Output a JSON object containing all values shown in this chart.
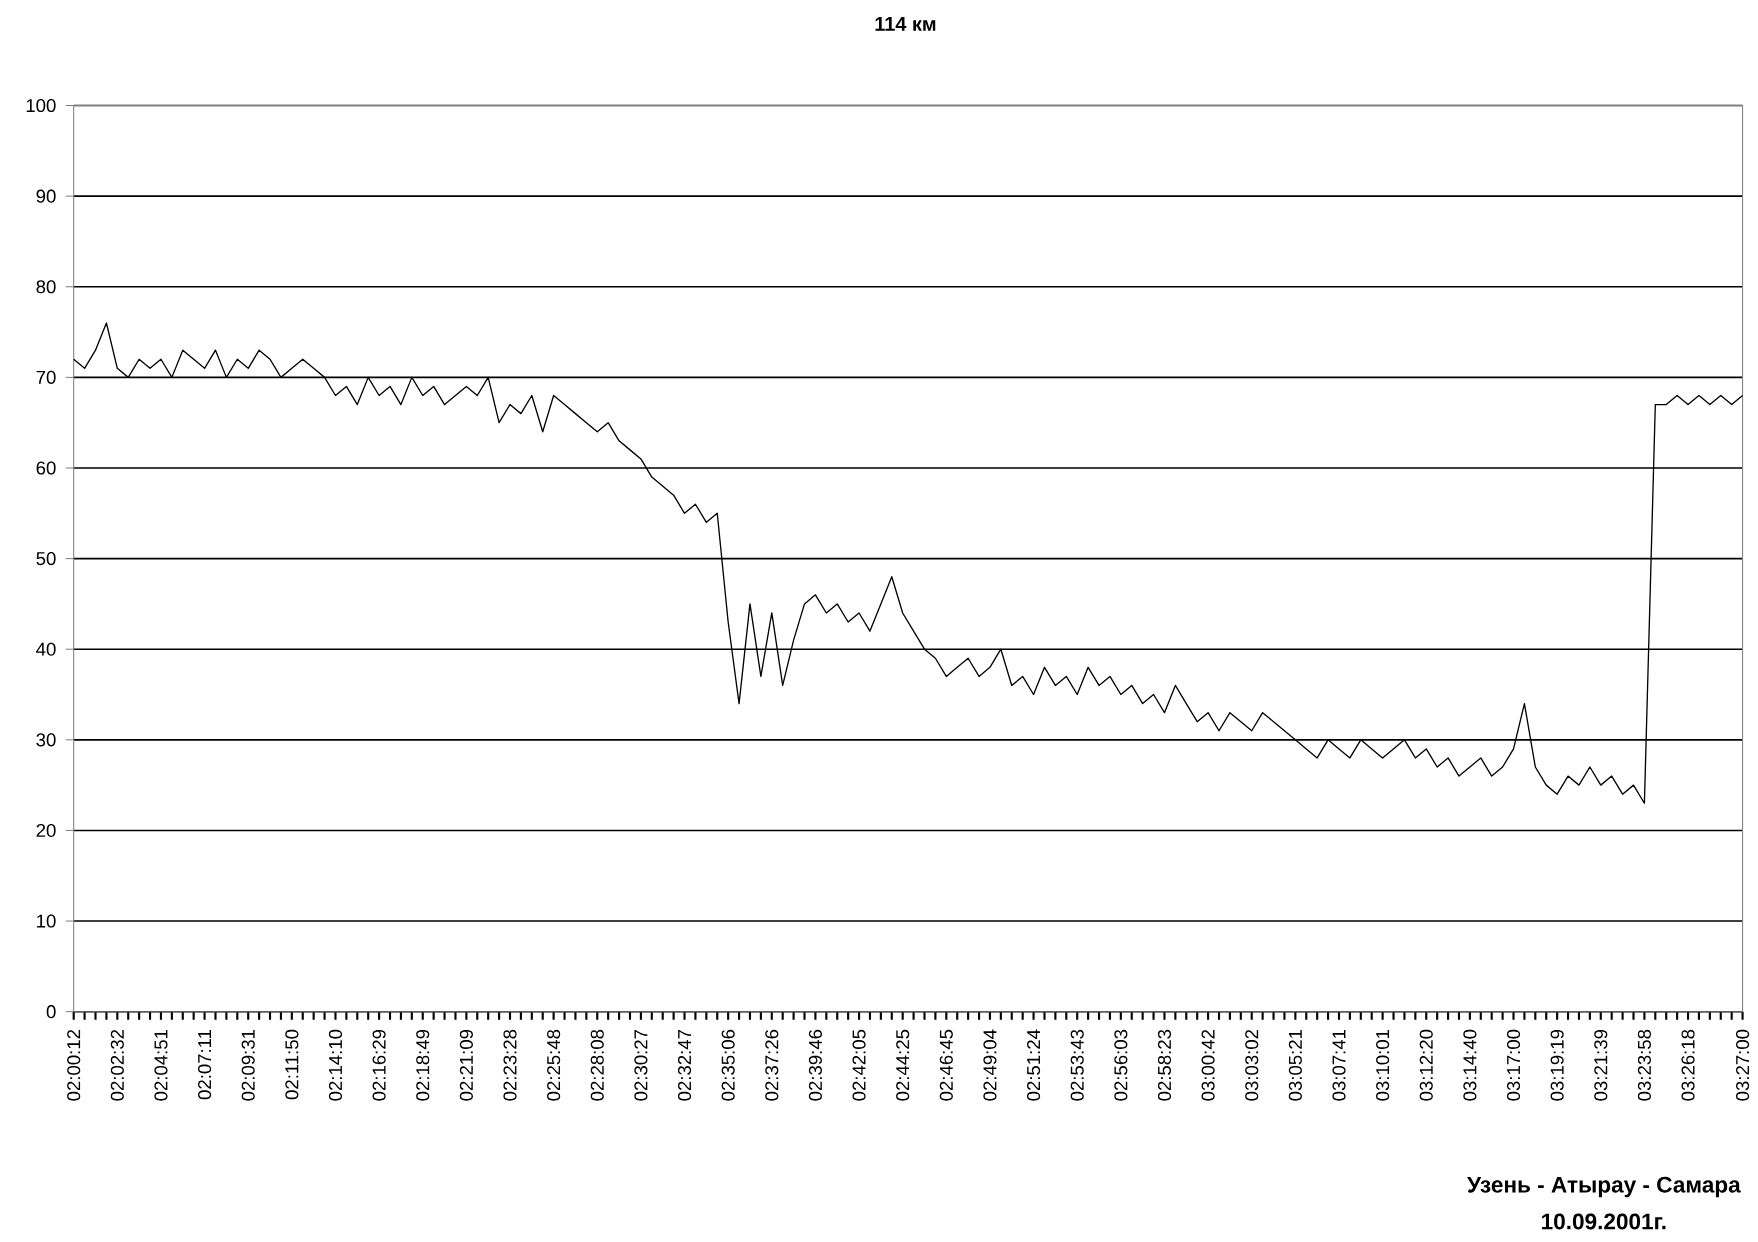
{
  "chart_data": {
    "type": "line",
    "title": "114 км",
    "categories": [
      "02:00:12",
      null,
      null,
      null,
      "02:02:32",
      null,
      null,
      null,
      "02:04:51",
      null,
      null,
      null,
      "02:07:11",
      null,
      null,
      null,
      "02:09:31",
      null,
      null,
      null,
      "02:11:50",
      null,
      null,
      null,
      "02:14:10",
      null,
      null,
      null,
      "02:16:29",
      null,
      null,
      null,
      "02:18:49",
      null,
      null,
      null,
      "02:21:09",
      null,
      null,
      null,
      "02:23:28",
      null,
      null,
      null,
      "02:25:48",
      null,
      null,
      null,
      "02:28:08",
      null,
      null,
      null,
      "02:30:27",
      null,
      null,
      null,
      "02:32:47",
      null,
      null,
      null,
      "02:35:06",
      null,
      null,
      null,
      "02:37:26",
      null,
      null,
      null,
      "02:39:46",
      null,
      null,
      null,
      "02:42:05",
      null,
      null,
      null,
      "02:44:25",
      null,
      null,
      null,
      "02:46:45",
      null,
      null,
      null,
      "02:49:04",
      null,
      null,
      null,
      "02:51:24",
      null,
      null,
      null,
      "02:53:43",
      null,
      null,
      null,
      "02:56:03",
      null,
      null,
      null,
      "02:58:23",
      null,
      null,
      null,
      "03:00:42",
      null,
      null,
      null,
      "03:03:02",
      null,
      null,
      null,
      "03:05:21",
      null,
      null,
      null,
      "03:07:41",
      null,
      null,
      null,
      "03:10:01",
      null,
      null,
      null,
      "03:12:20",
      null,
      null,
      null,
      "03:14:40",
      null,
      null,
      null,
      "03:17:00",
      null,
      null,
      null,
      "03:19:19",
      null,
      null,
      null,
      "03:21:39",
      null,
      null,
      null,
      "03:23:58",
      null,
      null,
      null,
      "03:26:18",
      null,
      null,
      null,
      null,
      "03:27:00"
    ],
    "series": [
      {
        "color": "#000000",
        "values": [
          72,
          71,
          73,
          76,
          71,
          70,
          72,
          71,
          72,
          70,
          73,
          72,
          71,
          73,
          70,
          72,
          71,
          73,
          72,
          70,
          71,
          72,
          71,
          70,
          68,
          69,
          67,
          70,
          68,
          69,
          67,
          70,
          68,
          69,
          67,
          68,
          69,
          68,
          70,
          65,
          67,
          66,
          68,
          64,
          68,
          67,
          66,
          65,
          64,
          65,
          63,
          62,
          61,
          59,
          58,
          57,
          55,
          56,
          54,
          55,
          43,
          34,
          45,
          37,
          44,
          36,
          41,
          45,
          46,
          44,
          45,
          43,
          44,
          42,
          45,
          48,
          44,
          42,
          40,
          39,
          37,
          38,
          39,
          37,
          38,
          40,
          36,
          37,
          35,
          38,
          36,
          37,
          35,
          38,
          36,
          37,
          35,
          36,
          34,
          35,
          33,
          36,
          34,
          32,
          33,
          31,
          33,
          32,
          31,
          33,
          32,
          31,
          30,
          29,
          28,
          30,
          29,
          28,
          30,
          29,
          28,
          29,
          30,
          28,
          29,
          27,
          28,
          26,
          27,
          28,
          26,
          27,
          29,
          34,
          27,
          25,
          24,
          26,
          25,
          27,
          25,
          26,
          24,
          25,
          23,
          67,
          67,
          68,
          67,
          68,
          67,
          68,
          67,
          68
        ]
      }
    ],
    "ylim": [
      0,
      100
    ],
    "yticks": [
      0,
      10,
      20,
      30,
      40,
      50,
      60,
      70,
      80,
      90,
      100
    ],
    "grid": "y",
    "marker": "none",
    "line_style": "solid",
    "annotations": [
      "Узень - Атырау - Самара",
      "10.09.2001г."
    ]
  }
}
